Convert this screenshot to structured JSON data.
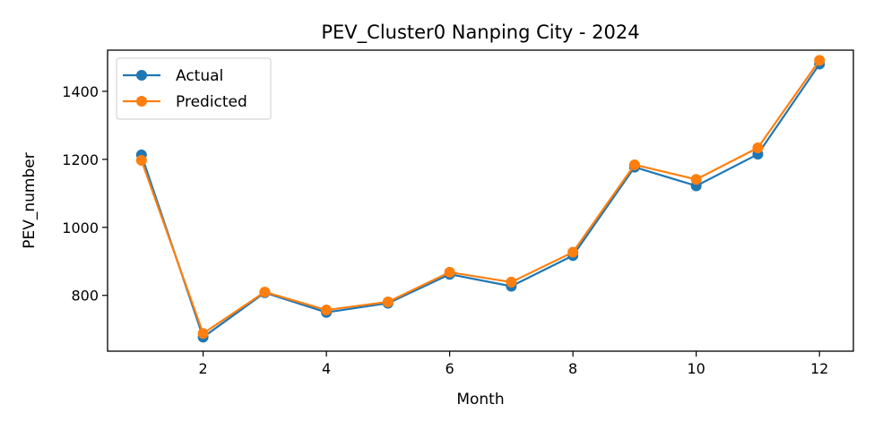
{
  "chart_data": {
    "type": "line",
    "title": "PEV_Cluster0 Nanping City - 2024",
    "xlabel": "Month",
    "ylabel": "PEV_number",
    "x": [
      1,
      2,
      3,
      4,
      5,
      6,
      7,
      8,
      9,
      10,
      11,
      12
    ],
    "xlim": [
      0.45,
      12.55
    ],
    "ylim": [
      636,
      1521
    ],
    "xticks": [
      2,
      4,
      6,
      8,
      10,
      12
    ],
    "yticks": [
      800,
      1000,
      1200,
      1400
    ],
    "grid": false,
    "legend_position": "upper-left",
    "series": [
      {
        "name": "Actual",
        "color": "#1f77b4",
        "values": [
          1213,
          677,
          808,
          750,
          777,
          862,
          827,
          917,
          1177,
          1122,
          1215,
          1480
        ]
      },
      {
        "name": "Predicted",
        "color": "#ff7f0e",
        "values": [
          1197,
          688,
          810,
          757,
          781,
          868,
          839,
          927,
          1184,
          1141,
          1234,
          1491
        ]
      }
    ]
  }
}
